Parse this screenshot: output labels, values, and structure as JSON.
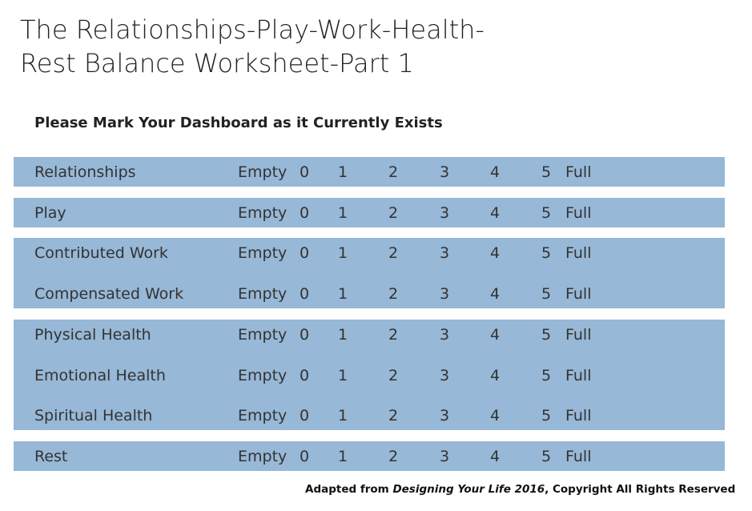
{
  "title": {
    "lines": [
      "The Relationships-Play-Work-Health-",
      "Rest Balance Worksheet-Part 1"
    ]
  },
  "subtitle": "Please Mark Your Dashboard as it Currently Exists",
  "scale": {
    "low": "Empty",
    "numbers": [
      0,
      1,
      2,
      3,
      4,
      5
    ],
    "high": "Full"
  },
  "groups": [
    {
      "rows": [
        "Relationships"
      ]
    },
    {
      "rows": [
        "Play"
      ]
    },
    {
      "rows": [
        "Contributed Work",
        "Compensated Work"
      ]
    },
    {
      "rows": [
        "Physical Health",
        "Emotional Health",
        "Spiritual Health"
      ]
    },
    {
      "rows": [
        "Rest"
      ]
    }
  ],
  "footer": {
    "prefix": "Adapted from ",
    "source": "Designing Your Life 2016",
    "suffix": ", Copyright All Rights Reserved"
  }
}
